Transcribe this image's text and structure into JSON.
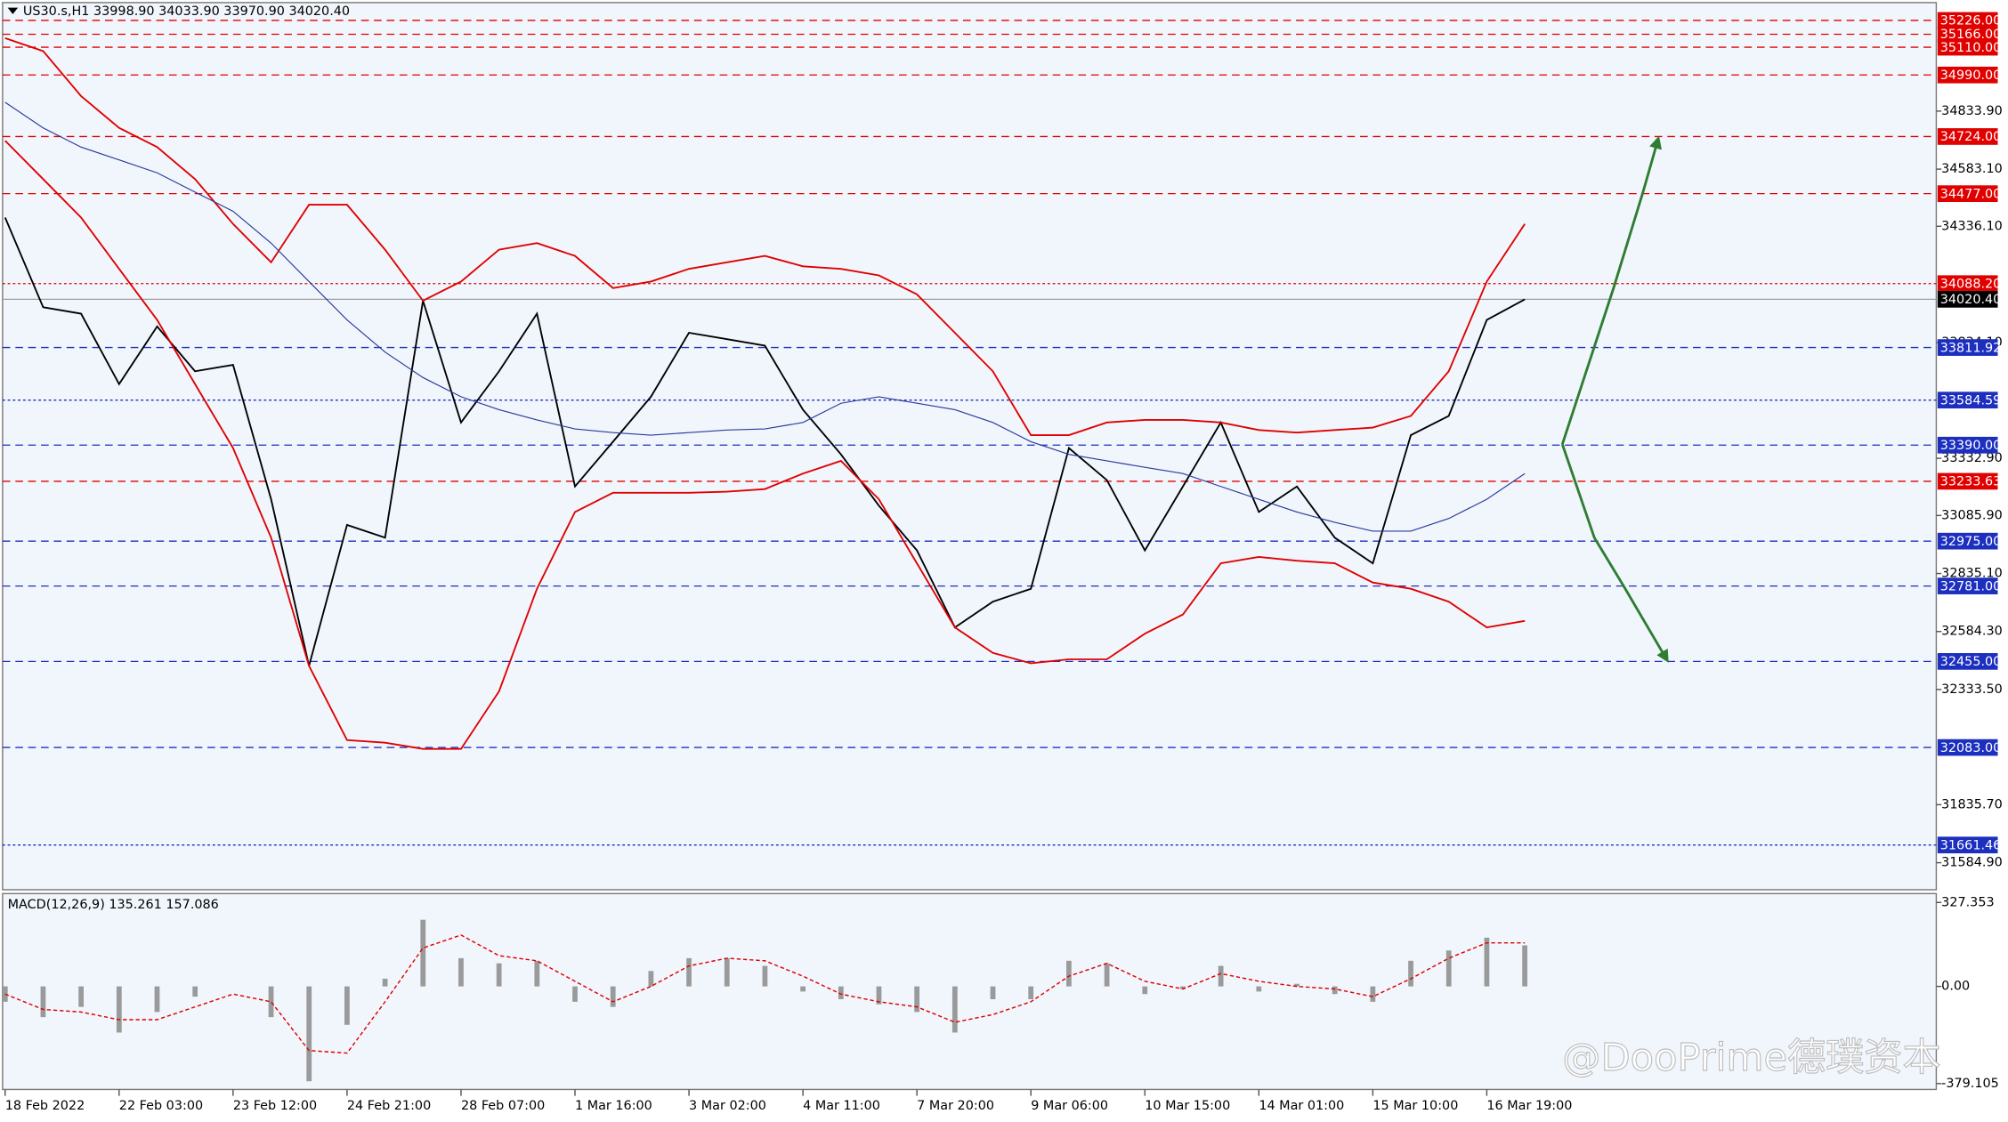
{
  "chart_data": [
    {
      "type": "line",
      "title": "US30.s,H1  33998.90 34033.90 33970.90 34020.40",
      "ylim": [
        31468,
        35303
      ],
      "yticks": [
        {
          "value": 34833.9,
          "label": "34833.90"
        },
        {
          "value": 34583.1,
          "label": "34583.10"
        },
        {
          "value": 34336.1,
          "label": "34336.10"
        },
        {
          "value": 33834.1,
          "label": "33834.10"
        },
        {
          "value": 33332.9,
          "label": "33332.90"
        },
        {
          "value": 33085.9,
          "label": "33085.90"
        },
        {
          "value": 32835.1,
          "label": "32835.10"
        },
        {
          "value": 32584.3,
          "label": "32584.30"
        },
        {
          "value": 32333.5,
          "label": "32333.50"
        },
        {
          "value": 31835.7,
          "label": "31835.70"
        },
        {
          "value": 31584.9,
          "label": "31584.90"
        }
      ],
      "series": [
        {
          "name": "Close",
          "color": "#000000",
          "values": [
            34374,
            33986,
            33958,
            33654,
            33903,
            33709,
            33737,
            33156,
            32436,
            33045,
            32990,
            34014,
            33488,
            33709,
            33958,
            33211,
            33405,
            33599,
            33876,
            33848,
            33820,
            33543,
            33350,
            33128,
            32935,
            32602,
            32713,
            32769,
            33377,
            33239,
            32935,
            33211,
            33488,
            33101,
            33211,
            32990,
            32879,
            33433,
            33516,
            33931,
            34020.4
          ]
        },
        {
          "name": "Upper band",
          "color": "#e00000",
          "values": [
            35149,
            35093,
            34899,
            34761,
            34678,
            34540,
            34346,
            34180,
            34429,
            34429,
            34235,
            34014,
            34097,
            34235,
            34263,
            34208,
            34069,
            34097,
            34152,
            34180,
            34208,
            34163,
            34152,
            34124,
            34042,
            33875,
            33709,
            33433,
            33433,
            33488,
            33499,
            33499,
            33488,
            33455,
            33444,
            33455,
            33466,
            33516,
            33709,
            34097,
            34346
          ]
        },
        {
          "name": "Lower band",
          "color": "#e00000",
          "values": [
            34706,
            34540,
            34374,
            34152,
            33931,
            33654,
            33377,
            32990,
            32436,
            32115,
            32104,
            32077,
            32077,
            32326,
            32769,
            33101,
            33184,
            33184,
            33184,
            33189,
            33200,
            33267,
            33322,
            33156,
            32879,
            32602,
            32492,
            32447,
            32464,
            32464,
            32575,
            32658,
            32879,
            32907,
            32890,
            32879,
            32796,
            32769,
            32713,
            32602,
            32630
          ]
        },
        {
          "name": "Moving average",
          "color": "#2b3a9c",
          "values": [
            34872,
            34761,
            34678,
            34623,
            34567,
            34484,
            34401,
            34263,
            34097,
            33931,
            33792,
            33682,
            33599,
            33543,
            33499,
            33460,
            33444,
            33433,
            33444,
            33455,
            33460,
            33488,
            33571,
            33599,
            33571,
            33543,
            33488,
            33405,
            33350,
            33322,
            33294,
            33267,
            33211,
            33156,
            33101,
            33056,
            33018,
            33018,
            33073,
            33156,
            33267
          ]
        }
      ],
      "levels": [
        {
          "value": 35226,
          "label": "35226.00",
          "color": "#e00000",
          "line": "dashed"
        },
        {
          "value": 35166,
          "label": "35166.00",
          "color": "#e00000",
          "line": "dashed"
        },
        {
          "value": 35110,
          "label": "35110.00",
          "color": "#e00000",
          "line": "dashed"
        },
        {
          "value": 34990,
          "label": "34990.00",
          "color": "#e00000",
          "line": "dashed"
        },
        {
          "value": 34724,
          "label": "34724.00",
          "color": "#e00000",
          "line": "dashed"
        },
        {
          "value": 34477,
          "label": "34477.00",
          "color": "#e00000",
          "line": "dashed"
        },
        {
          "value": 34088.2,
          "label": "34088.20",
          "color": "#e00000",
          "line": "dotted"
        },
        {
          "value": 34020.4,
          "label": "34020.40",
          "color": "#000000",
          "line": "solid"
        },
        {
          "value": 33811.92,
          "label": "33811.92",
          "color": "#1c2fbf",
          "line": "dashed"
        },
        {
          "value": 33584.59,
          "label": "33584.59",
          "color": "#1c2fbf",
          "line": "dotted"
        },
        {
          "value": 33390,
          "label": "33390.00",
          "color": "#1c2fbf",
          "line": "dashed"
        },
        {
          "value": 33233.63,
          "label": "33233.63",
          "color": "#e00000",
          "line": "dashed"
        },
        {
          "value": 32975,
          "label": "32975.00",
          "color": "#1c2fbf",
          "line": "dashed"
        },
        {
          "value": 32781,
          "label": "32781.00",
          "color": "#1c2fbf",
          "line": "dashed"
        },
        {
          "value": 32455,
          "label": "32455.00",
          "color": "#1c2fbf",
          "line": "dashed"
        },
        {
          "value": 32083,
          "label": "32083.00",
          "color": "#1c2fbf",
          "line": "dashed"
        },
        {
          "value": 31661.46,
          "label": "31661.46",
          "color": "#1c2fbf",
          "line": "dotted"
        }
      ]
    },
    {
      "type": "bar",
      "title": "MACD(12,26,9) 135.261 157.086",
      "ylim": [
        -402,
        362
      ],
      "yticks": [
        {
          "value": 327.353,
          "label": "327.353"
        },
        {
          "value": 0,
          "label": "0.00"
        },
        {
          "value": -379.105,
          "label": "-379.105"
        }
      ],
      "categories": [
        "18 Feb 2022",
        null,
        null,
        "22 Feb 03:00",
        null,
        null,
        "23 Feb 12:00",
        null,
        null,
        "24 Feb 21:00",
        null,
        null,
        "28 Feb 07:00",
        null,
        null,
        "1 Mar 16:00",
        null,
        null,
        "3 Mar 02:00",
        null,
        null,
        "4 Mar 11:00",
        null,
        null,
        "7 Mar 20:00",
        null,
        null,
        "9 Mar 06:00",
        null,
        null,
        "10 Mar 15:00",
        null,
        null,
        "14 Mar 01:00",
        null,
        null,
        "15 Mar 10:00",
        null,
        null,
        "16 Mar 19:00",
        null
      ],
      "series": [
        {
          "name": "MACD",
          "color": "#9a9a9a",
          "values": [
            -60,
            -120,
            -80,
            -180,
            -100,
            -40,
            0,
            -120,
            -370,
            -150,
            30,
            260,
            110,
            90,
            100,
            -60,
            -80,
            60,
            110,
            110,
            80,
            -20,
            -50,
            -70,
            -100,
            -180,
            -50,
            -50,
            100,
            90,
            -30,
            -10,
            80,
            -20,
            10,
            -30,
            -60,
            100,
            140,
            190,
            160
          ]
        },
        {
          "name": "Signal",
          "color": "#e00000",
          "values": [
            -30,
            -90,
            -100,
            -130,
            -130,
            -80,
            -30,
            -60,
            -250,
            -260,
            -60,
            150,
            200,
            120,
            100,
            20,
            -60,
            0,
            80,
            110,
            100,
            40,
            -30,
            -60,
            -80,
            -140,
            -110,
            -60,
            40,
            90,
            20,
            -10,
            50,
            20,
            0,
            -10,
            -40,
            30,
            110,
            170,
            170
          ]
        }
      ]
    }
  ],
  "watermark": "@DooPrime德璞资本"
}
